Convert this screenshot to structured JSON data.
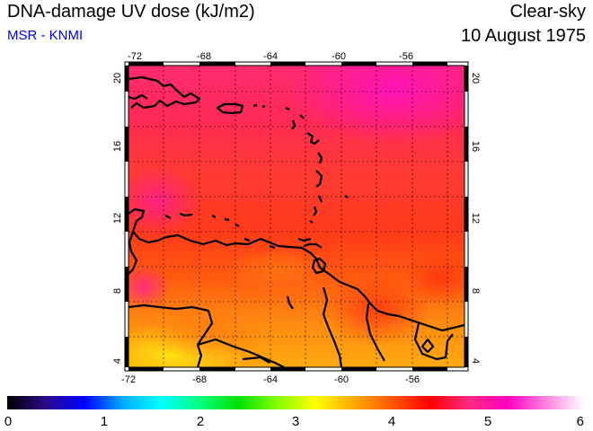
{
  "header": {
    "title": "DNA-damage UV dose (kJ/m2)",
    "credit": "MSR - KNMI",
    "sky_condition": "Clear-sky",
    "date": "10 August 1975"
  },
  "map": {
    "region": "Caribbean (Lesser Antilles / northern South America)",
    "lon_range": [
      -72,
      -53
    ],
    "lat_range": [
      3.5,
      20.5
    ],
    "lon_ticks": [
      -72,
      -68,
      -64,
      -60,
      -56
    ],
    "lat_ticks": [
      4,
      8,
      12,
      16,
      20
    ],
    "lon_tick_labels": [
      "-72",
      "-68",
      "-64",
      "-60",
      "-56"
    ],
    "lat_tick_labels": [
      "4",
      "8",
      "12",
      "16",
      "20"
    ],
    "gridlines": "dotted",
    "frame": "black-white checkered border",
    "coastline_color": "#000000",
    "field_description_values": {
      "north_pink_band": 5.2,
      "central_red": 4.6,
      "south_orange": 3.9,
      "southwest_yellow": 3.5
    }
  },
  "colorbar": {
    "min": 0,
    "max": 6,
    "tick_labels": [
      "0",
      "1",
      "2",
      "3",
      "4",
      "5",
      "6"
    ],
    "colors": [
      "#000000",
      "#2a0a8a",
      "#0000ff",
      "#00aaff",
      "#00ffff",
      "#00ff80",
      "#00e000",
      "#80ff00",
      "#ffff00",
      "#ffaa00",
      "#ff5a00",
      "#ff0000",
      "#ff2a80",
      "#ff00c0",
      "#ff80e0",
      "#ffffff"
    ]
  }
}
